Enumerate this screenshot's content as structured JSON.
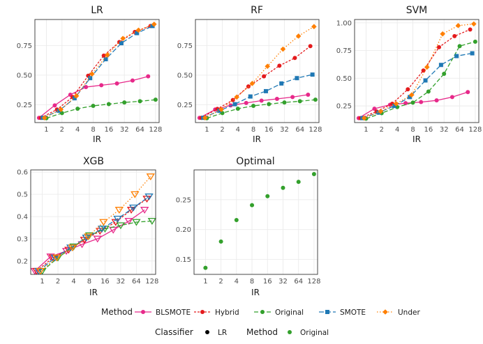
{
  "chart_data": [
    {
      "type": "line",
      "title": "LR",
      "xlabel": "IR",
      "scale_x": "log2",
      "x_ticks": [
        "1",
        "2",
        "4",
        "8",
        "16",
        "32",
        "64",
        "128"
      ],
      "y_ticks": [
        "0.25",
        "0.50",
        "0.75"
      ],
      "ylim": [
        0.1,
        0.97
      ],
      "grid": true,
      "series": [
        {
          "name": "BLSMOTE",
          "x": [
            0.72,
            1.45,
            2.9,
            5.8,
            11.5,
            23,
            46,
            92
          ],
          "y": [
            0.14,
            0.245,
            0.335,
            0.4,
            0.415,
            0.43,
            0.455,
            0.49
          ]
        },
        {
          "name": "Hybrid",
          "x": [
            0.78,
            1.6,
            3.2,
            6.4,
            12.8,
            25.6,
            51,
            102
          ],
          "y": [
            0.14,
            0.21,
            0.315,
            0.495,
            0.665,
            0.78,
            0.865,
            0.915
          ]
        },
        {
          "name": "Original",
          "x": [
            1,
            2,
            4,
            8,
            16,
            32,
            64,
            128
          ],
          "y": [
            0.137,
            0.18,
            0.217,
            0.241,
            0.256,
            0.27,
            0.28,
            0.293
          ]
        },
        {
          "name": "SMOTE",
          "x": [
            0.85,
            1.75,
            3.5,
            7,
            14,
            28,
            56,
            112
          ],
          "y": [
            0.14,
            0.2,
            0.305,
            0.475,
            0.635,
            0.77,
            0.855,
            0.915
          ]
        },
        {
          "name": "Under",
          "x": [
            0.92,
            1.9,
            3.8,
            7.6,
            15,
            30,
            60,
            120
          ],
          "y": [
            0.14,
            0.21,
            0.325,
            0.51,
            0.67,
            0.81,
            0.88,
            0.93
          ]
        }
      ]
    },
    {
      "type": "line",
      "title": "RF",
      "xlabel": "IR",
      "scale_x": "log2",
      "x_ticks": [
        "1",
        "2",
        "4",
        "8",
        "16",
        "32",
        "64",
        "128"
      ],
      "y_ticks": [
        "0.25",
        "0.50",
        "0.75"
      ],
      "ylim": [
        0.1,
        0.97
      ],
      "grid": true,
      "series": [
        {
          "name": "BLSMOTE",
          "x": [
            0.72,
            1.45,
            2.9,
            5.8,
            11.5,
            23,
            46,
            92
          ],
          "y": [
            0.14,
            0.21,
            0.245,
            0.265,
            0.285,
            0.3,
            0.315,
            0.335
          ]
        },
        {
          "name": "Hybrid",
          "x": [
            0.78,
            1.6,
            3.2,
            6.4,
            12.8,
            25.6,
            51,
            102
          ],
          "y": [
            0.14,
            0.215,
            0.29,
            0.405,
            0.49,
            0.58,
            0.645,
            0.745
          ]
        },
        {
          "name": "Original",
          "x": [
            1,
            2,
            4,
            8,
            16,
            32,
            64,
            128
          ],
          "y": [
            0.137,
            0.18,
            0.217,
            0.241,
            0.256,
            0.27,
            0.28,
            0.293
          ]
        },
        {
          "name": "SMOTE",
          "x": [
            0.85,
            1.75,
            3.5,
            7,
            14,
            28,
            56,
            112
          ],
          "y": [
            0.14,
            0.2,
            0.255,
            0.32,
            0.365,
            0.43,
            0.475,
            0.505
          ]
        },
        {
          "name": "Under",
          "x": [
            0.92,
            1.9,
            3.8,
            7.6,
            15,
            30,
            60,
            120
          ],
          "y": [
            0.14,
            0.21,
            0.315,
            0.43,
            0.575,
            0.72,
            0.83,
            0.91
          ]
        }
      ]
    },
    {
      "type": "line",
      "title": "SVM",
      "xlabel": "IR",
      "scale_x": "log2",
      "x_ticks": [
        "1",
        "2",
        "4",
        "8",
        "16",
        "32",
        "64",
        "128"
      ],
      "y_ticks": [
        "0.25",
        "0.50",
        "0.75",
        "1.00"
      ],
      "ylim": [
        0.1,
        1.03
      ],
      "grid": true,
      "series": [
        {
          "name": "BLSMOTE",
          "x": [
            0.72,
            1.45,
            2.9,
            5.8,
            11.5,
            23,
            46,
            92
          ],
          "y": [
            0.14,
            0.225,
            0.26,
            0.275,
            0.285,
            0.3,
            0.33,
            0.375
          ]
        },
        {
          "name": "Hybrid",
          "x": [
            0.78,
            1.6,
            3.2,
            6.4,
            12.8,
            25.6,
            51,
            102
          ],
          "y": [
            0.14,
            0.2,
            0.27,
            0.4,
            0.57,
            0.78,
            0.88,
            0.94
          ]
        },
        {
          "name": "Original",
          "x": [
            1,
            2,
            4,
            8,
            16,
            32,
            64,
            128
          ],
          "y": [
            0.135,
            0.185,
            0.24,
            0.28,
            0.38,
            0.54,
            0.79,
            0.83
          ]
        },
        {
          "name": "SMOTE",
          "x": [
            0.85,
            1.75,
            3.5,
            7,
            14,
            28,
            56,
            112
          ],
          "y": [
            0.14,
            0.19,
            0.25,
            0.33,
            0.48,
            0.62,
            0.7,
            0.725
          ]
        },
        {
          "name": "Under",
          "x": [
            0.92,
            1.9,
            3.8,
            7.6,
            15,
            30,
            60,
            120
          ],
          "y": [
            0.14,
            0.2,
            0.27,
            0.35,
            0.6,
            0.9,
            0.975,
            0.99
          ]
        }
      ]
    },
    {
      "type": "line",
      "title": "XGB",
      "xlabel": "IR",
      "scale_x": "log2",
      "x_ticks": [
        "1",
        "2",
        "4",
        "8",
        "16",
        "32",
        "64",
        "128"
      ],
      "y_ticks": [
        "0.2",
        "0.3",
        "0.4",
        "0.5",
        "0.6"
      ],
      "ylim": [
        0.14,
        0.61
      ],
      "grid": true,
      "series": [
        {
          "name": "BLSMOTE",
          "x": [
            0.72,
            1.45,
            2.9,
            5.8,
            11.5,
            23,
            46,
            92
          ],
          "y": [
            0.155,
            0.22,
            0.245,
            0.275,
            0.3,
            0.34,
            0.38,
            0.43
          ]
        },
        {
          "name": "Hybrid",
          "x": [
            0.78,
            1.6,
            3.2,
            6.4,
            12.8,
            25.6,
            51,
            102
          ],
          "y": [
            0.155,
            0.215,
            0.25,
            0.295,
            0.335,
            0.375,
            0.43,
            0.48
          ]
        },
        {
          "name": "Original",
          "x": [
            1,
            2,
            4,
            8,
            16,
            32,
            64,
            128
          ],
          "y": [
            0.155,
            0.215,
            0.265,
            0.315,
            0.345,
            0.36,
            0.375,
            0.38
          ]
        },
        {
          "name": "SMOTE",
          "x": [
            0.85,
            1.75,
            3.5,
            7,
            14,
            28,
            56,
            112
          ],
          "y": [
            0.155,
            0.215,
            0.26,
            0.305,
            0.345,
            0.39,
            0.44,
            0.49
          ]
        },
        {
          "name": "Under",
          "x": [
            0.92,
            1.9,
            3.8,
            7.6,
            15,
            30,
            60,
            120
          ],
          "y": [
            0.155,
            0.215,
            0.26,
            0.31,
            0.375,
            0.43,
            0.5,
            0.58
          ]
        }
      ]
    },
    {
      "type": "scatter",
      "title": "Optimal",
      "xlabel": "IR",
      "scale_x": "log2",
      "x_ticks": [
        "1",
        "2",
        "4",
        "8",
        "16",
        "32",
        "64",
        "128"
      ],
      "y_ticks": [
        "0.15",
        "0.20",
        "0.25"
      ],
      "ylim": [
        0.125,
        0.3
      ],
      "grid": true,
      "series": [
        {
          "name": "Original",
          "x": [
            1,
            2,
            4,
            8,
            16,
            32,
            64,
            128
          ],
          "y": [
            0.136,
            0.18,
            0.216,
            0.241,
            0.256,
            0.27,
            0.28,
            0.293
          ]
        }
      ]
    }
  ],
  "legend": {
    "method_title": "Method",
    "methods": [
      "BLSMOTE",
      "Hybrid",
      "Original",
      "SMOTE",
      "Under"
    ],
    "classifier_title": "Classifier",
    "classifier_item": "LR",
    "method2_title": "Method",
    "method2_item": "Original"
  },
  "colors": {
    "BLSMOTE": "#E7298A",
    "Hybrid": "#E41A1C",
    "Original": "#33A02C",
    "SMOTE": "#1F78B4",
    "Under": "#FF7F00",
    "panel_bg": "#ffffff",
    "grid": "#ebebeb"
  }
}
